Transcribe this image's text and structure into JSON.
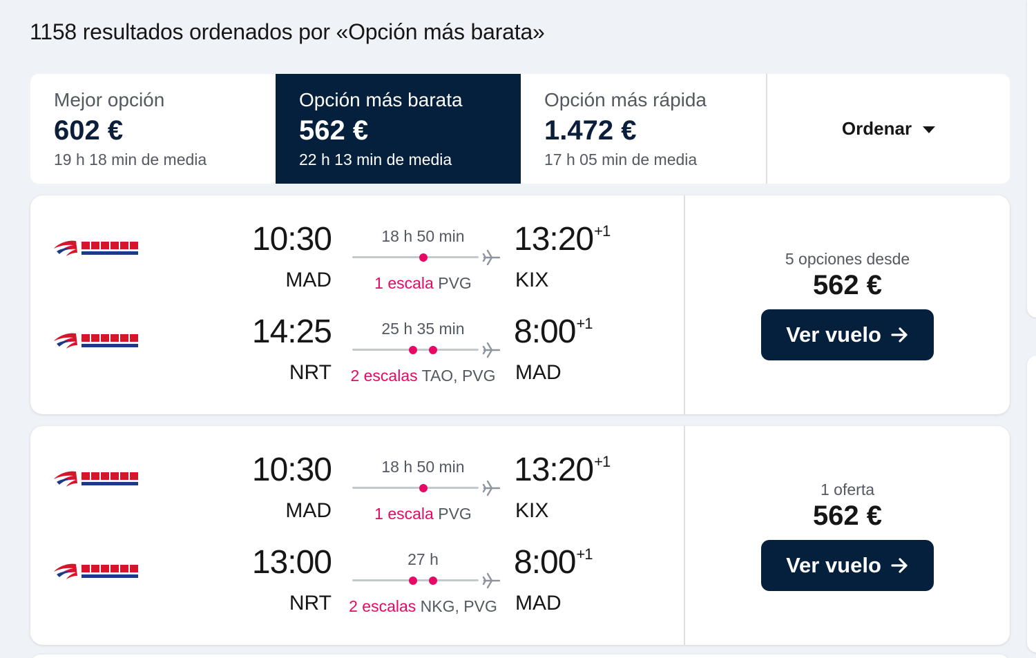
{
  "results_header": "1158 resultados ordenados por «Opción más barata»",
  "sort_tabs": [
    {
      "label": "Mejor opción",
      "price": "602 €",
      "duration": "19 h 18 min de media",
      "active": false
    },
    {
      "label": "Opción más barata",
      "price": "562 €",
      "duration": "22 h 13 min de media",
      "active": true
    },
    {
      "label": "Opción más rápida",
      "price": "1.472 €",
      "duration": "17 h 05 min de media",
      "active": false
    }
  ],
  "sort_order_label": "Ordenar",
  "accent_color": "#e70866",
  "button_color": "#05203c",
  "airline_logo": "China Eastern logo",
  "results": [
    {
      "outbound": {
        "dep_time": "10:30",
        "dep_code": "MAD",
        "duration": "18 h 50 min",
        "stop_count": "1 escala",
        "stop_airports": "PVG",
        "arr_time": "13:20",
        "arr_offset": "+1",
        "arr_code": "KIX"
      },
      "inbound": {
        "dep_time": "14:25",
        "dep_code": "NRT",
        "duration": "25 h 35 min",
        "stop_count": "2 escalas",
        "stop_airports": "TAO, PVG",
        "arr_time": "8:00",
        "arr_offset": "+1",
        "arr_code": "MAD"
      },
      "offers": "5 opciones desde",
      "price": "562 €",
      "button_label": "Ver vuelo"
    },
    {
      "outbound": {
        "dep_time": "10:30",
        "dep_code": "MAD",
        "duration": "18 h 50 min",
        "stop_count": "1 escala",
        "stop_airports": "PVG",
        "arr_time": "13:20",
        "arr_offset": "+1",
        "arr_code": "KIX"
      },
      "inbound": {
        "dep_time": "13:00",
        "dep_code": "NRT",
        "duration": "27 h",
        "stop_count": "2 escalas",
        "stop_airports": "NKG, PVG",
        "arr_time": "8:00",
        "arr_offset": "+1",
        "arr_code": "MAD"
      },
      "offers": "1 oferta",
      "price": "562 €",
      "button_label": "Ver vuelo"
    }
  ]
}
